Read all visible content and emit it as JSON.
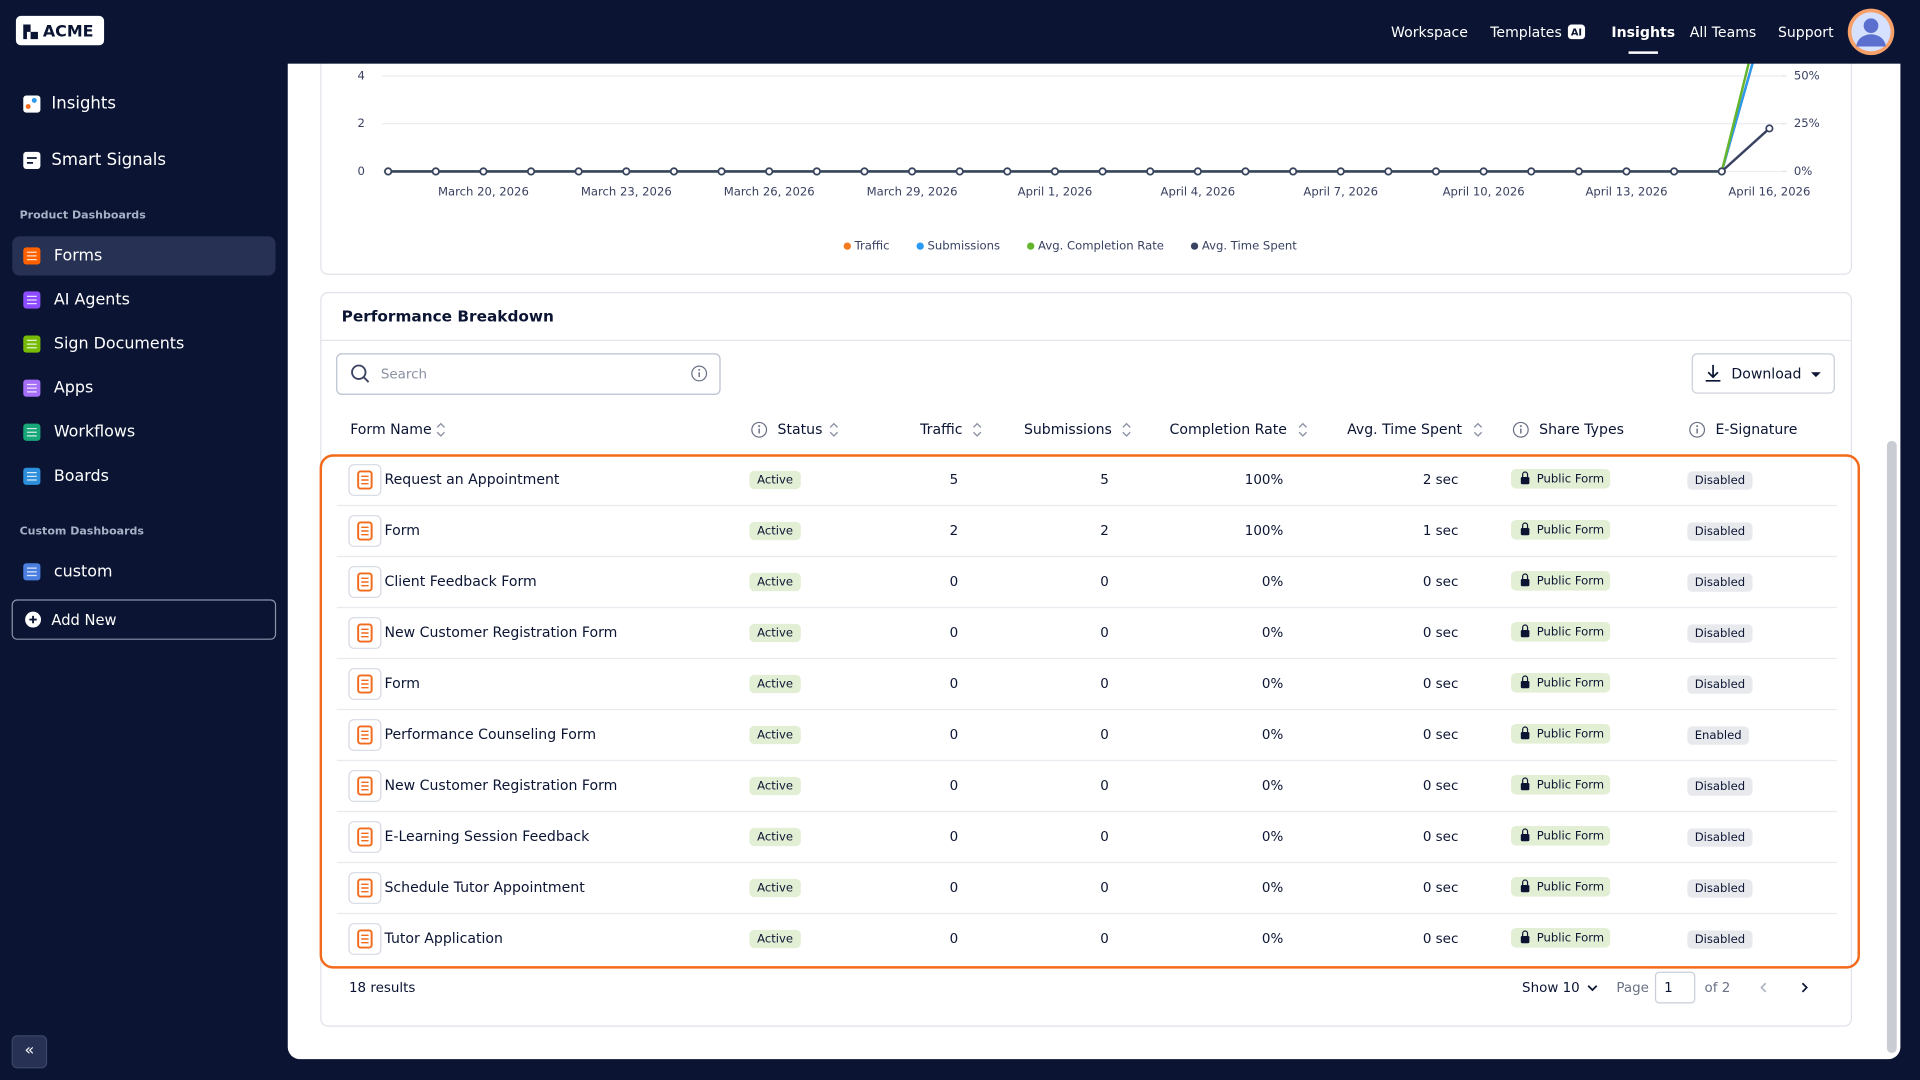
{
  "header": {
    "logo": "ACME",
    "nav": [
      "Workspace",
      "Templates",
      "Insights",
      "All Teams",
      "Support"
    ],
    "templates_badge": "AI",
    "active_nav": 2
  },
  "sidebar": {
    "top_items": [
      "Insights",
      "Smart Signals"
    ],
    "sections": [
      {
        "title": "Product Dashboards",
        "items": [
          "Forms",
          "AI Agents",
          "Sign Documents",
          "Apps",
          "Workflows",
          "Boards"
        ]
      },
      {
        "title": "Custom Dashboards",
        "items": [
          "custom"
        ]
      }
    ],
    "add_button": "Add New",
    "collapse": "«"
  },
  "chart_data": {
    "type": "line",
    "categories": [
      null,
      null,
      "March 20, 2026",
      null,
      null,
      "March 23, 2026",
      null,
      null,
      "March 26, 2026",
      null,
      null,
      "March 29, 2026",
      null,
      null,
      "April 1, 2026",
      null,
      null,
      "April 4, 2026",
      null,
      null,
      "April 7, 2026",
      null,
      null,
      "April 10, 2026",
      null,
      null,
      "April 13, 2026",
      null,
      null,
      "April 16, 2026"
    ],
    "ylim": [
      0,
      4
    ],
    "yticks": [
      0,
      2,
      4
    ],
    "y2lim": [
      0,
      50
    ],
    "y2ticks": [
      {
        "value": 0,
        "label": "0%"
      },
      {
        "value": 25,
        "label": "25%"
      },
      {
        "value": 50,
        "label": "50%"
      }
    ],
    "grid": true,
    "legend": "bottom",
    "series": [
      {
        "name": "Traffic",
        "color": "#f47a20",
        "values": [
          0,
          0,
          0,
          0,
          0,
          0,
          0,
          0,
          0,
          0,
          0,
          0,
          0,
          0,
          0,
          0,
          0,
          0,
          0,
          0,
          0,
          0,
          0,
          0,
          0,
          0,
          0,
          0,
          0,
          7
        ]
      },
      {
        "name": "Submissions",
        "color": "#2b9af3",
        "values": [
          0,
          0,
          0,
          0,
          0,
          0,
          0,
          0,
          0,
          0,
          0,
          0,
          0,
          0,
          0,
          0,
          0,
          0,
          0,
          0,
          0,
          0,
          0,
          0,
          0,
          0,
          0,
          0,
          0,
          7
        ]
      },
      {
        "name": "Avg. Completion Rate",
        "color": "#64b52d",
        "axis": "y2",
        "values": [
          0,
          0,
          0,
          0,
          0,
          0,
          0,
          0,
          0,
          0,
          0,
          0,
          0,
          0,
          0,
          0,
          0,
          0,
          0,
          0,
          0,
          0,
          0,
          0,
          0,
          0,
          0,
          0,
          0,
          100
        ]
      },
      {
        "name": "Avg. Time Spent",
        "color": "#3a4262",
        "values": [
          0,
          0,
          0,
          0,
          0,
          0,
          0,
          0,
          0,
          0,
          0,
          0,
          0,
          0,
          0,
          0,
          0,
          0,
          0,
          0,
          0,
          0,
          0,
          0,
          0,
          0,
          0,
          0,
          0,
          1.8
        ]
      }
    ]
  },
  "table": {
    "title": "Performance Breakdown",
    "search_placeholder": "Search",
    "download": "Download",
    "columns": [
      "Form Name",
      "Status",
      "Traffic",
      "Submissions",
      "Completion Rate",
      "Avg. Time Spent",
      "Share Types",
      "E-Signature"
    ],
    "rows": [
      [
        "Request an Appointment",
        "Active",
        "5",
        "5",
        "100%",
        "2 sec",
        "Public Form",
        "Disabled"
      ],
      [
        "Form",
        "Active",
        "2",
        "2",
        "100%",
        "1 sec",
        "Public Form",
        "Disabled"
      ],
      [
        "Client Feedback Form",
        "Active",
        "0",
        "0",
        "0%",
        "0 sec",
        "Public Form",
        "Disabled"
      ],
      [
        "New Customer Registration Form",
        "Active",
        "0",
        "0",
        "0%",
        "0 sec",
        "Public Form",
        "Disabled"
      ],
      [
        "Form",
        "Active",
        "0",
        "0",
        "0%",
        "0 sec",
        "Public Form",
        "Disabled"
      ],
      [
        "Performance Counseling Form",
        "Active",
        "0",
        "0",
        "0%",
        "0 sec",
        "Public Form",
        "Enabled"
      ],
      [
        "New Customer Registration Form",
        "Active",
        "0",
        "0",
        "0%",
        "0 sec",
        "Public Form",
        "Disabled"
      ],
      [
        "E-Learning Session Feedback",
        "Active",
        "0",
        "0",
        "0%",
        "0 sec",
        "Public Form",
        "Disabled"
      ],
      [
        "Schedule Tutor Appointment",
        "Active",
        "0",
        "0",
        "0%",
        "0 sec",
        "Public Form",
        "Disabled"
      ],
      [
        "Tutor Application",
        "Active",
        "0",
        "0",
        "0%",
        "0 sec",
        "Public Form",
        "Disabled"
      ]
    ],
    "footer": {
      "results": "18 results",
      "page_size": "Show 10",
      "page_label": "Page",
      "page": "1",
      "page_count": "of 2"
    }
  }
}
